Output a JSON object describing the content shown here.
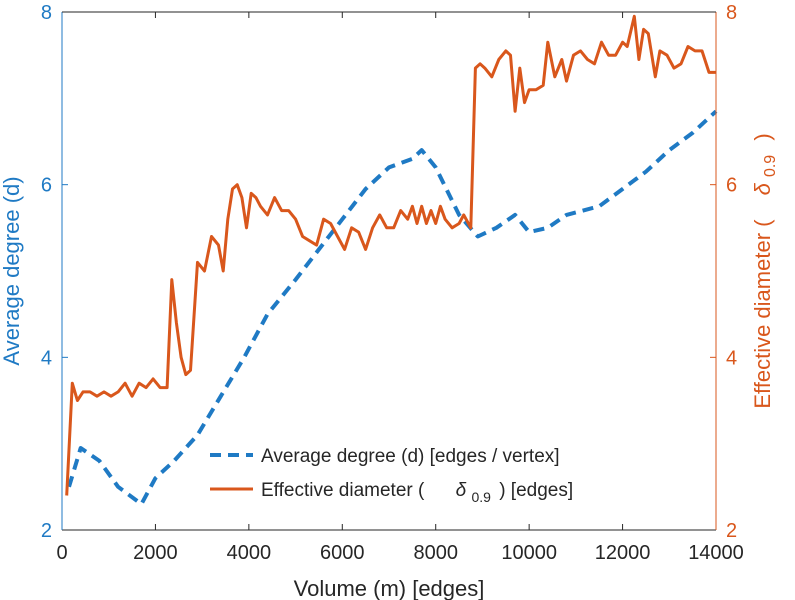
{
  "chart_data": {
    "type": "line",
    "xlabel": "Volume (m) [edges]",
    "ylabel_left": "Average degree (d)",
    "ylabel_right_prefix": "Effective diameter (",
    "ylabel_right_symbol": "δ",
    "ylabel_right_sub": "0.9",
    "ylabel_right_suffix": ")",
    "xlim": [
      0,
      14000
    ],
    "ylim_left": [
      2,
      8
    ],
    "ylim_right": [
      2,
      8
    ],
    "xticks": [
      0,
      2000,
      4000,
      6000,
      8000,
      10000,
      12000,
      14000
    ],
    "xtick_labels": [
      "0",
      "2000",
      "4000",
      "6000",
      "8000",
      "10000",
      "12000",
      "14000"
    ],
    "yticks_left": [
      2,
      4,
      6,
      8
    ],
    "ytick_labels_left": [
      "2",
      "4",
      "6",
      "8"
    ],
    "yticks_right": [
      2,
      4,
      6,
      8
    ],
    "ytick_labels_right": [
      "2",
      "4",
      "6",
      "8"
    ],
    "colors": {
      "degree": "#1f7ac4",
      "diameter": "#d9571c",
      "axis_x": "#262626"
    },
    "legend": {
      "position": "lower-right",
      "entries": [
        {
          "label": "Average degree (d) [edges / vertex]",
          "style": "dashed",
          "color": "#1f7ac4"
        },
        {
          "prefix": "Effective diameter (",
          "symbol": "δ",
          "sub": "0.9",
          "suffix": ") [edges]",
          "style": "solid",
          "color": "#d9571c"
        }
      ]
    },
    "series": [
      {
        "name": "Average degree (d) [edges / vertex]",
        "axis": "left",
        "style": "dashed",
        "x": [
          150,
          400,
          800,
          1200,
          1700,
          2000,
          2400,
          2900,
          3400,
          3900,
          4400,
          5000,
          5500,
          6000,
          6500,
          7000,
          7500,
          7700,
          8000,
          8500,
          8900,
          9300,
          9700,
          10000,
          10400,
          10800,
          11500,
          12000,
          12500,
          13000,
          13500,
          14000
        ],
        "values": [
          2.5,
          2.95,
          2.8,
          2.5,
          2.3,
          2.6,
          2.8,
          3.1,
          3.55,
          4.0,
          4.5,
          4.9,
          5.25,
          5.6,
          5.95,
          6.2,
          6.3,
          6.4,
          6.2,
          5.65,
          5.4,
          5.5,
          5.65,
          5.45,
          5.5,
          5.65,
          5.75,
          5.95,
          6.15,
          6.4,
          6.6,
          6.85
        ]
      },
      {
        "name": "Effective diameter (δ0.9) [edges]",
        "axis": "right",
        "style": "solid",
        "x": [
          100,
          220,
          330,
          450,
          600,
          750,
          900,
          1050,
          1200,
          1350,
          1500,
          1650,
          1800,
          1950,
          2100,
          2250,
          2350,
          2450,
          2550,
          2650,
          2750,
          2900,
          3050,
          3200,
          3350,
          3450,
          3550,
          3650,
          3750,
          3850,
          3950,
          4050,
          4150,
          4250,
          4400,
          4550,
          4700,
          4850,
          5000,
          5150,
          5300,
          5450,
          5600,
          5750,
          5900,
          6050,
          6200,
          6350,
          6500,
          6650,
          6800,
          6950,
          7100,
          7250,
          7400,
          7500,
          7600,
          7700,
          7800,
          7900,
          8000,
          8100,
          8200,
          8350,
          8500,
          8600,
          8750,
          8850,
          8950,
          9050,
          9200,
          9350,
          9500,
          9600,
          9700,
          9800,
          9900,
          10000,
          10150,
          10300,
          10400,
          10550,
          10700,
          10800,
          10950,
          11100,
          11250,
          11400,
          11550,
          11700,
          11850,
          12000,
          12100,
          12250,
          12350,
          12450,
          12550,
          12700,
          12800,
          12950,
          13100,
          13250,
          13400,
          13550,
          13700,
          13850,
          14000
        ],
        "values": [
          2.4,
          3.7,
          3.5,
          3.6,
          3.6,
          3.55,
          3.6,
          3.55,
          3.6,
          3.7,
          3.55,
          3.7,
          3.65,
          3.75,
          3.65,
          3.65,
          4.9,
          4.4,
          4.0,
          3.8,
          3.85,
          5.1,
          5.0,
          5.4,
          5.3,
          5.0,
          5.6,
          5.95,
          6.0,
          5.85,
          5.5,
          5.9,
          5.85,
          5.75,
          5.65,
          5.85,
          5.7,
          5.7,
          5.6,
          5.4,
          5.35,
          5.3,
          5.6,
          5.55,
          5.4,
          5.25,
          5.5,
          5.45,
          5.25,
          5.5,
          5.65,
          5.5,
          5.5,
          5.7,
          5.6,
          5.75,
          5.55,
          5.75,
          5.55,
          5.7,
          5.55,
          5.75,
          5.6,
          5.5,
          5.55,
          5.65,
          5.5,
          7.35,
          7.4,
          7.35,
          7.25,
          7.45,
          7.55,
          7.5,
          6.85,
          7.35,
          6.95,
          7.1,
          7.1,
          7.15,
          7.65,
          7.25,
          7.45,
          7.2,
          7.5,
          7.55,
          7.45,
          7.4,
          7.65,
          7.5,
          7.5,
          7.65,
          7.6,
          7.95,
          7.45,
          7.8,
          7.75,
          7.25,
          7.55,
          7.5,
          7.35,
          7.4,
          7.6,
          7.55,
          7.55,
          7.3,
          7.3
        ]
      }
    ]
  }
}
